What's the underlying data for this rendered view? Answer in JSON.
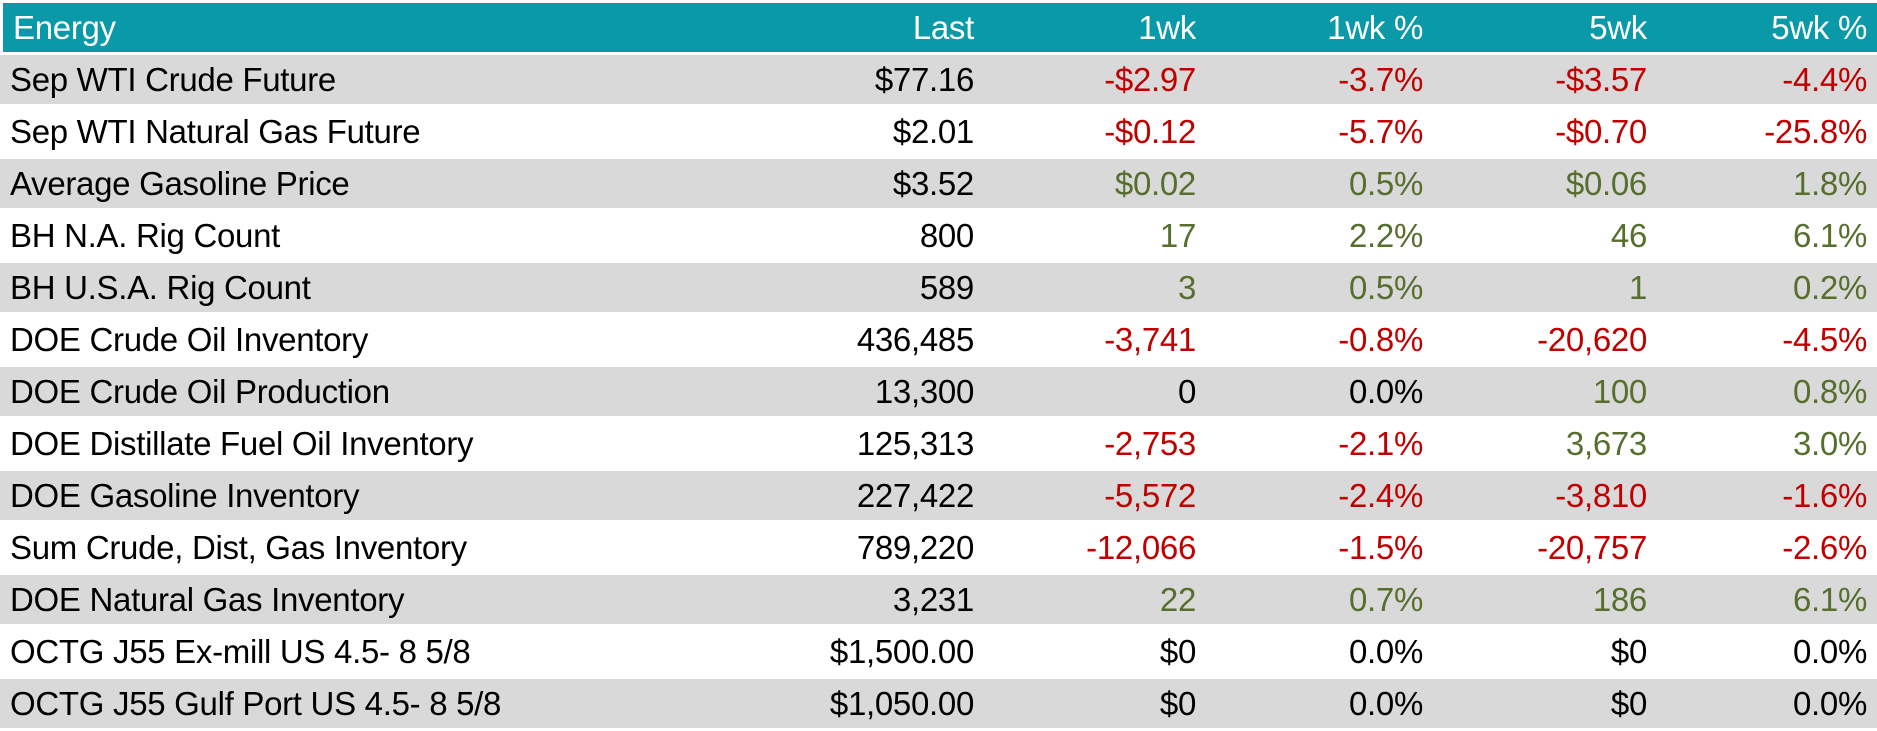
{
  "colors": {
    "header_bg": "#0999A8",
    "header_text": "#FFFFFF",
    "row_alt_bg": "#D9D9D9",
    "row_bg": "#FFFFFF",
    "negative": "#C00000",
    "positive": "#566E2E",
    "neutral": "#000000"
  },
  "table": {
    "columns": [
      "Energy",
      "Last",
      "1wk",
      "1wk %",
      "5wk",
      "5wk %"
    ],
    "rows": [
      {
        "label": "Sep WTI Crude Future",
        "values": [
          {
            "text": "$77.16",
            "tone": "neutral"
          },
          {
            "text": "-$2.97",
            "tone": "down"
          },
          {
            "text": "-3.7%",
            "tone": "down"
          },
          {
            "text": "-$3.57",
            "tone": "down"
          },
          {
            "text": "-4.4%",
            "tone": "down"
          }
        ]
      },
      {
        "label": "Sep WTI Natural Gas Future",
        "values": [
          {
            "text": "$2.01",
            "tone": "neutral"
          },
          {
            "text": "-$0.12",
            "tone": "down"
          },
          {
            "text": "-5.7%",
            "tone": "down"
          },
          {
            "text": "-$0.70",
            "tone": "down"
          },
          {
            "text": "-25.8%",
            "tone": "down"
          }
        ]
      },
      {
        "label": "Average Gasoline Price",
        "values": [
          {
            "text": "$3.52",
            "tone": "neutral"
          },
          {
            "text": "$0.02",
            "tone": "up"
          },
          {
            "text": "0.5%",
            "tone": "up"
          },
          {
            "text": "$0.06",
            "tone": "up"
          },
          {
            "text": "1.8%",
            "tone": "up"
          }
        ]
      },
      {
        "label": "BH N.A. Rig Count",
        "values": [
          {
            "text": "800",
            "tone": "neutral"
          },
          {
            "text": "17",
            "tone": "up"
          },
          {
            "text": "2.2%",
            "tone": "up"
          },
          {
            "text": "46",
            "tone": "up"
          },
          {
            "text": "6.1%",
            "tone": "up"
          }
        ]
      },
      {
        "label": "BH U.S.A. Rig Count",
        "values": [
          {
            "text": "589",
            "tone": "neutral"
          },
          {
            "text": "3",
            "tone": "up"
          },
          {
            "text": "0.5%",
            "tone": "up"
          },
          {
            "text": "1",
            "tone": "up"
          },
          {
            "text": "0.2%",
            "tone": "up"
          }
        ]
      },
      {
        "label": "DOE Crude Oil Inventory",
        "values": [
          {
            "text": "436,485",
            "tone": "neutral"
          },
          {
            "text": "-3,741",
            "tone": "down"
          },
          {
            "text": "-0.8%",
            "tone": "down"
          },
          {
            "text": "-20,620",
            "tone": "down"
          },
          {
            "text": "-4.5%",
            "tone": "down"
          }
        ]
      },
      {
        "label": "DOE Crude Oil Production",
        "values": [
          {
            "text": "13,300",
            "tone": "neutral"
          },
          {
            "text": "0",
            "tone": "neutral"
          },
          {
            "text": "0.0%",
            "tone": "neutral"
          },
          {
            "text": "100",
            "tone": "up"
          },
          {
            "text": "0.8%",
            "tone": "up"
          }
        ]
      },
      {
        "label": "DOE Distillate Fuel Oil Inventory",
        "values": [
          {
            "text": "125,313",
            "tone": "neutral"
          },
          {
            "text": "-2,753",
            "tone": "down"
          },
          {
            "text": "-2.1%",
            "tone": "down"
          },
          {
            "text": "3,673",
            "tone": "up"
          },
          {
            "text": "3.0%",
            "tone": "up"
          }
        ]
      },
      {
        "label": "DOE Gasoline Inventory",
        "values": [
          {
            "text": "227,422",
            "tone": "neutral"
          },
          {
            "text": "-5,572",
            "tone": "down"
          },
          {
            "text": "-2.4%",
            "tone": "down"
          },
          {
            "text": "-3,810",
            "tone": "down"
          },
          {
            "text": "-1.6%",
            "tone": "down"
          }
        ]
      },
      {
        "label": "Sum Crude, Dist, Gas Inventory",
        "values": [
          {
            "text": "789,220",
            "tone": "neutral"
          },
          {
            "text": "-12,066",
            "tone": "down"
          },
          {
            "text": "-1.5%",
            "tone": "down"
          },
          {
            "text": "-20,757",
            "tone": "down"
          },
          {
            "text": "-2.6%",
            "tone": "down"
          }
        ]
      },
      {
        "label": "DOE Natural Gas Inventory",
        "values": [
          {
            "text": "3,231",
            "tone": "neutral"
          },
          {
            "text": "22",
            "tone": "up"
          },
          {
            "text": "0.7%",
            "tone": "up"
          },
          {
            "text": "186",
            "tone": "up"
          },
          {
            "text": "6.1%",
            "tone": "up"
          }
        ]
      },
      {
        "label": "OCTG J55 Ex-mill US 4.5- 8 5/8",
        "values": [
          {
            "text": "$1,500.00",
            "tone": "neutral"
          },
          {
            "text": "$0",
            "tone": "neutral"
          },
          {
            "text": "0.0%",
            "tone": "neutral"
          },
          {
            "text": "$0",
            "tone": "neutral"
          },
          {
            "text": "0.0%",
            "tone": "neutral"
          }
        ]
      },
      {
        "label": "OCTG J55 Gulf Port US 4.5- 8 5/8",
        "values": [
          {
            "text": "$1,050.00",
            "tone": "neutral"
          },
          {
            "text": "$0",
            "tone": "neutral"
          },
          {
            "text": "0.0%",
            "tone": "neutral"
          },
          {
            "text": "$0",
            "tone": "neutral"
          },
          {
            "text": "0.0%",
            "tone": "neutral"
          }
        ]
      }
    ]
  },
  "chart_data": {
    "type": "table",
    "title": "Energy",
    "columns": [
      "Energy",
      "Last",
      "1wk",
      "1wk %",
      "5wk",
      "5wk %"
    ],
    "rows": [
      [
        "Sep WTI Crude Future",
        "$77.16",
        "-$2.97",
        "-3.7%",
        "-$3.57",
        "-4.4%"
      ],
      [
        "Sep WTI Natural Gas Future",
        "$2.01",
        "-$0.12",
        "-5.7%",
        "-$0.70",
        "-25.8%"
      ],
      [
        "Average Gasoline Price",
        "$3.52",
        "$0.02",
        "0.5%",
        "$0.06",
        "1.8%"
      ],
      [
        "BH N.A. Rig Count",
        "800",
        "17",
        "2.2%",
        "46",
        "6.1%"
      ],
      [
        "BH U.S.A. Rig Count",
        "589",
        "3",
        "0.5%",
        "1",
        "0.2%"
      ],
      [
        "DOE Crude Oil Inventory",
        "436,485",
        "-3,741",
        "-0.8%",
        "-20,620",
        "-4.5%"
      ],
      [
        "DOE Crude Oil Production",
        "13,300",
        "0",
        "0.0%",
        "100",
        "0.8%"
      ],
      [
        "DOE Distillate Fuel Oil Inventory",
        "125,313",
        "-2,753",
        "-2.1%",
        "3,673",
        "3.0%"
      ],
      [
        "DOE Gasoline Inventory",
        "227,422",
        "-5,572",
        "-2.4%",
        "-3,810",
        "-1.6%"
      ],
      [
        "Sum Crude, Dist, Gas Inventory",
        "789,220",
        "-12,066",
        "-1.5%",
        "-20,757",
        "-2.6%"
      ],
      [
        "DOE Natural Gas Inventory",
        "3,231",
        "22",
        "0.7%",
        "186",
        "6.1%"
      ],
      [
        "OCTG J55 Ex-mill US 4.5- 8 5/8",
        "$1,500.00",
        "$0",
        "0.0%",
        "$0",
        "0.0%"
      ],
      [
        "OCTG J55 Gulf Port US 4.5- 8 5/8",
        "$1,050.00",
        "$0",
        "0.0%",
        "$0",
        "0.0%"
      ]
    ],
    "legend": {
      "negative_values_color": "#C00000",
      "positive_values_color": "#566E2E",
      "zero_or_last_values_color": "#000000"
    }
  }
}
